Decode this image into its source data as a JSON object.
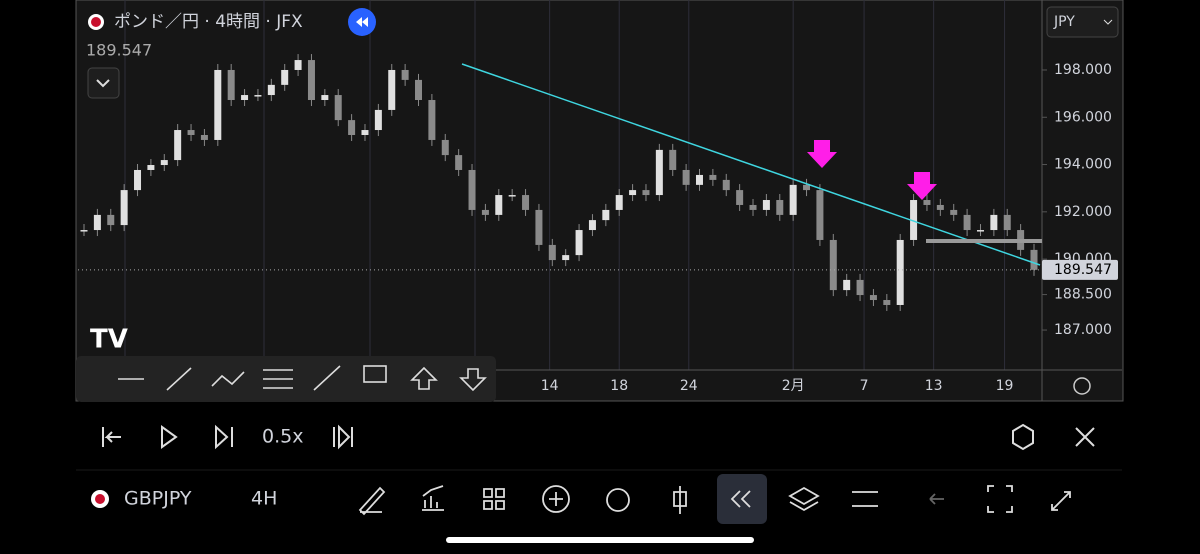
{
  "chart_data": {
    "type": "candlestick",
    "title": "ポンド／円 · 4時間 · JFX",
    "last_price": "189.547",
    "currency": "JPY",
    "series": [
      {
        "name": "GBPJPY",
        "color": "#e0e0e0",
        "values": [
          191.23,
          191.87,
          191.44,
          192.92,
          193.77,
          193.98,
          194.19,
          195.46,
          195.25,
          195.04,
          198.0,
          196.73,
          196.94,
          196.94,
          197.37,
          198.0,
          198.42,
          196.73,
          196.94,
          195.88,
          195.25,
          195.46,
          196.31,
          198.0,
          197.58,
          196.73,
          195.04,
          194.4,
          193.77,
          192.08,
          191.87,
          192.71,
          192.71,
          192.08,
          190.6,
          189.96,
          190.17,
          191.23,
          191.65,
          192.08,
          192.71,
          192.92,
          192.71,
          194.62,
          193.77,
          193.14,
          193.56,
          193.35,
          192.92,
          192.29,
          192.08,
          192.5,
          191.87,
          193.14,
          192.92,
          190.81,
          188.69,
          189.12,
          188.48,
          188.27,
          188.06,
          190.81,
          192.5,
          192.29,
          192.08,
          191.87,
          191.23,
          191.23,
          191.87,
          191.23,
          190.39,
          189.547
        ]
      }
    ],
    "xlim": [
      0,
      71
    ],
    "xticks": [
      {
        "value": 34.8,
        "label": "14"
      },
      {
        "value": 40.0,
        "label": "18"
      },
      {
        "value": 45.2,
        "label": "24"
      },
      {
        "value": 53.0,
        "label": "2月"
      },
      {
        "value": 58.3,
        "label": "7"
      },
      {
        "value": 63.5,
        "label": "13"
      },
      {
        "value": 68.8,
        "label": "19"
      }
    ],
    "ylim": [
      185.31,
      200.96
    ],
    "yticks": [
      {
        "value": 187,
        "label": "187.000"
      },
      {
        "value": 188.5,
        "label": "188.500"
      },
      {
        "value": 190,
        "label": "190.000"
      },
      {
        "value": 192,
        "label": "192.000"
      },
      {
        "value": 194,
        "label": "194.000"
      },
      {
        "value": 196,
        "label": "196.000"
      },
      {
        "value": 198,
        "label": "198.000"
      }
    ],
    "grid": true
  },
  "replay_bar": {
    "speed": "0.5x"
  },
  "bottom_bar": {
    "symbol": "GBPJPY",
    "interval": "4H"
  }
}
